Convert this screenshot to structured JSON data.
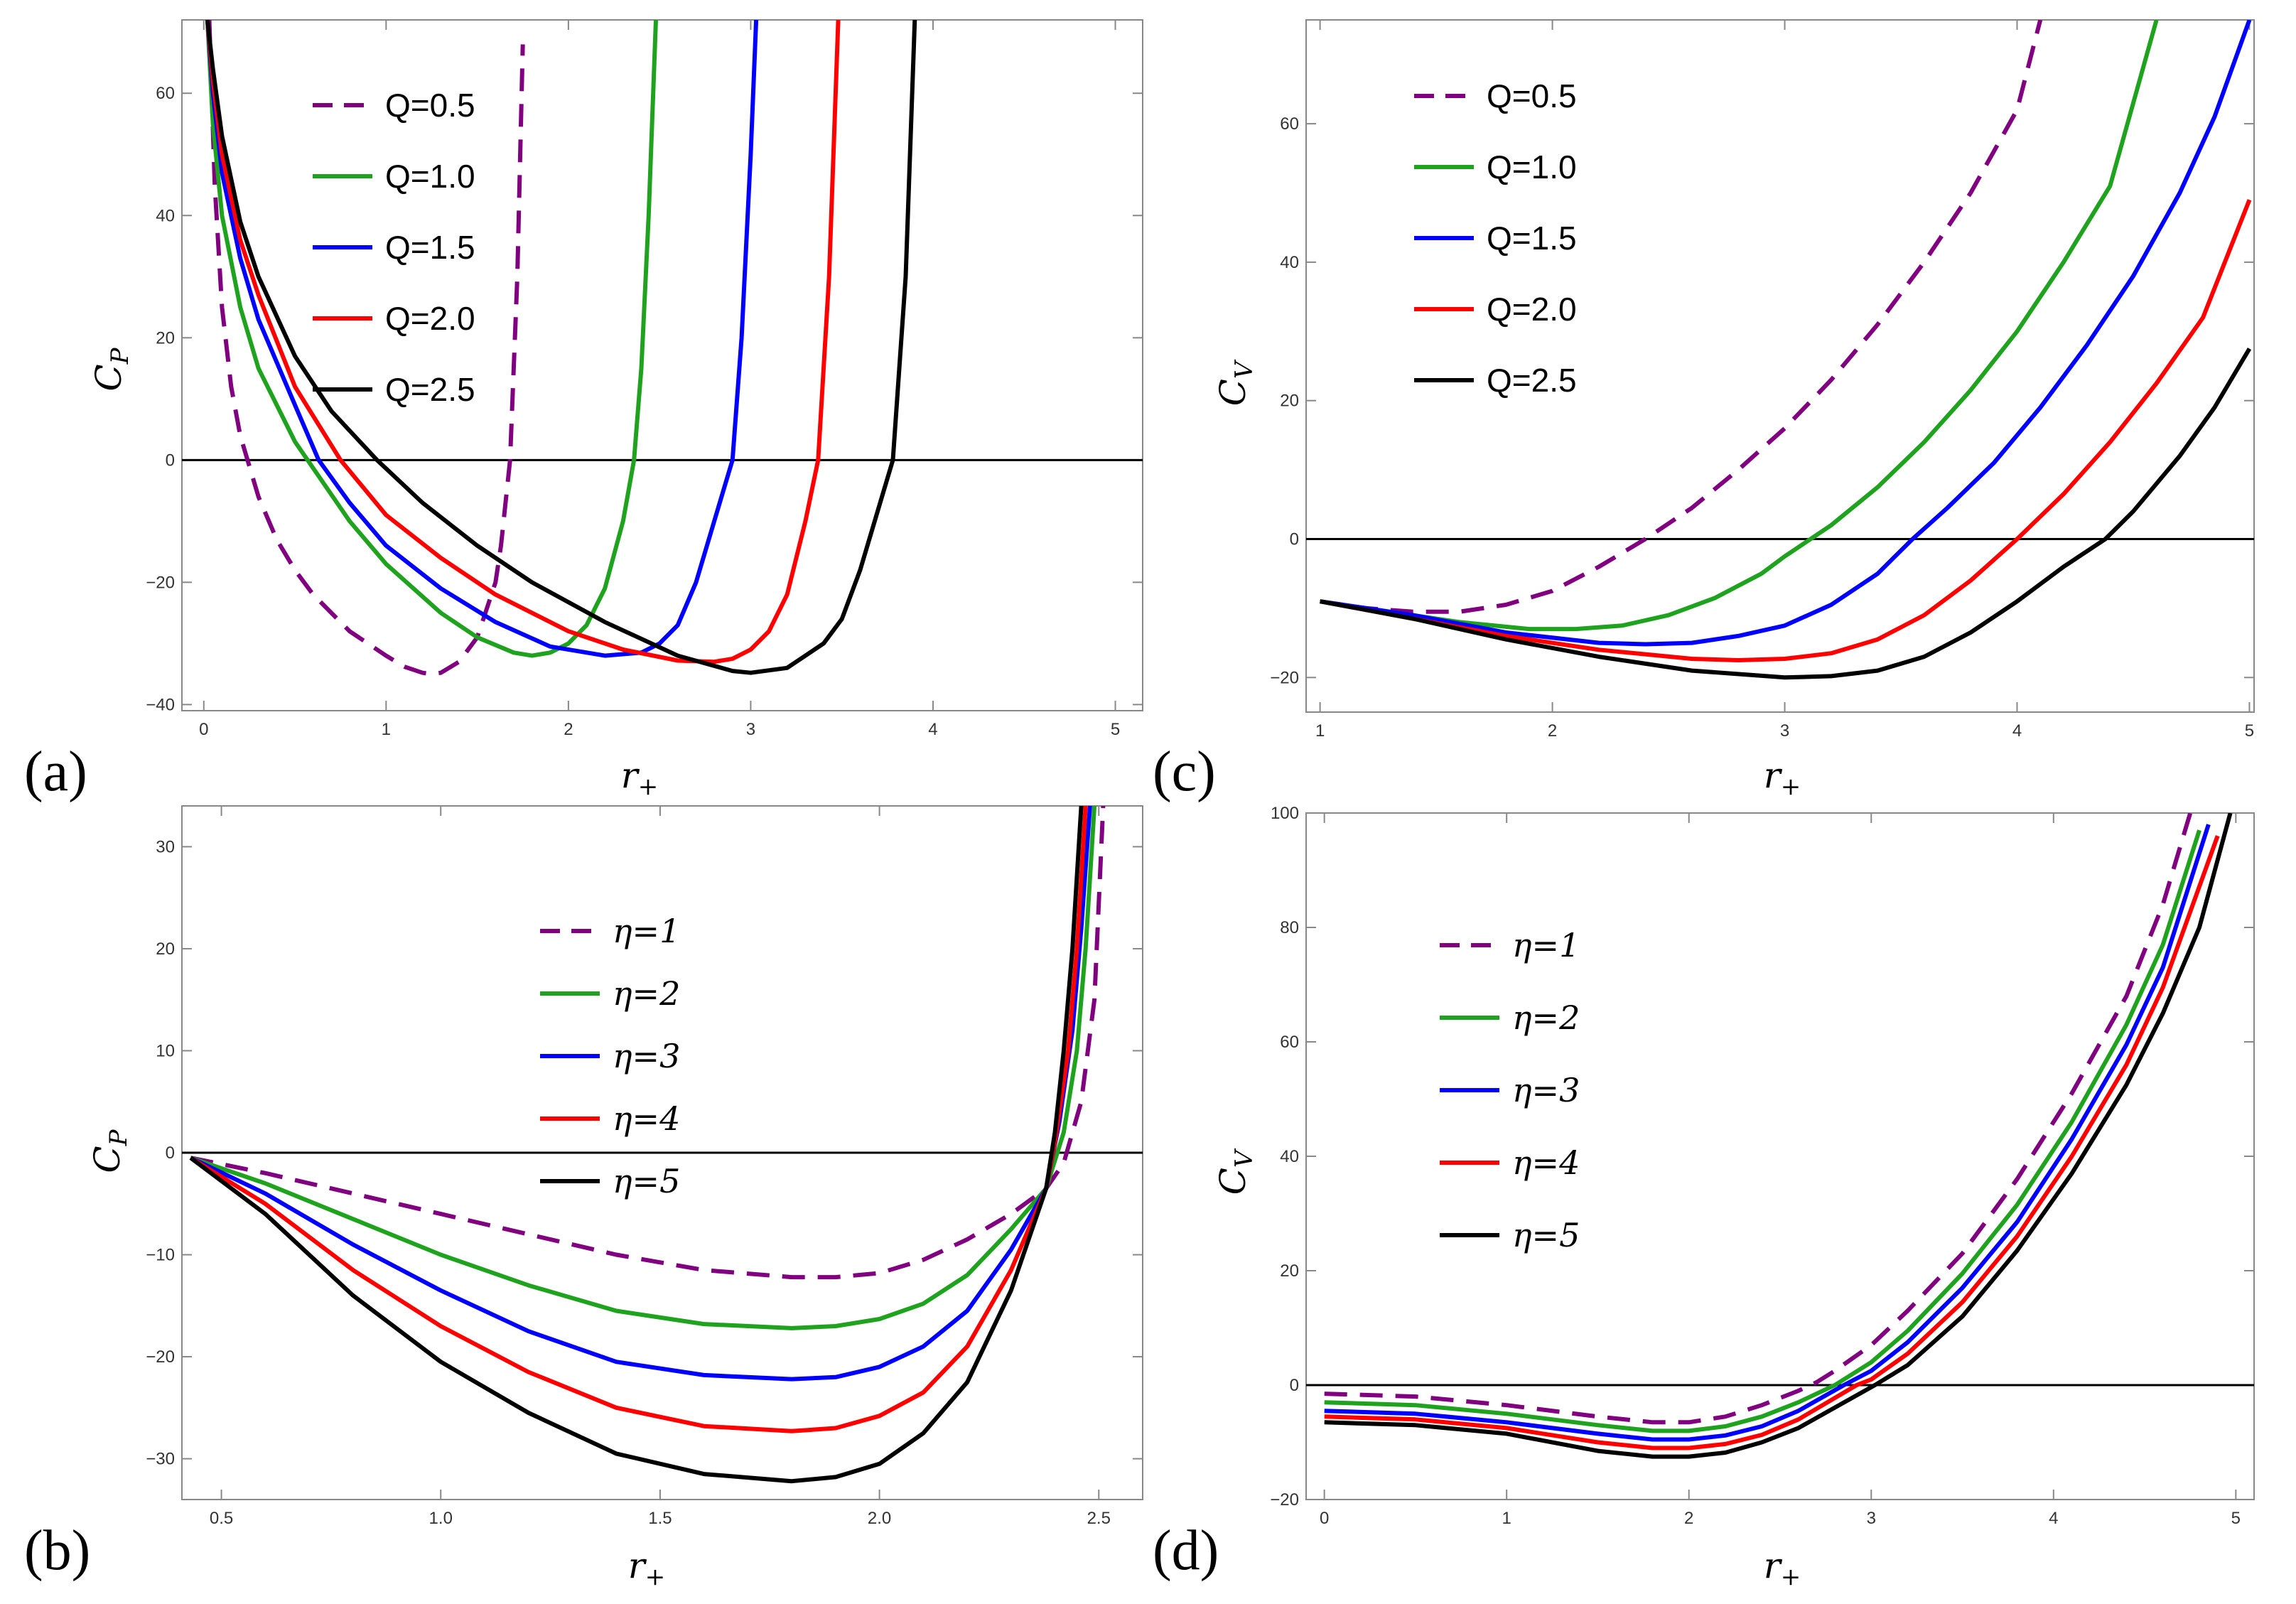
{
  "colors": {
    "purple": "#800080",
    "green": "#1fa31f",
    "blue": "#0000ff",
    "red": "#ff0000",
    "black": "#000000"
  },
  "chart_data": [
    {
      "id": "a",
      "panel_label": "(a)",
      "type": "line",
      "xlabel": "r",
      "xlabel_sub": "+",
      "ylabel": "C",
      "ylabel_sub": "P",
      "xlim": [
        -0.12,
        5.15
      ],
      "ylim": [
        -41,
        72
      ],
      "xticks": [
        0,
        1,
        2,
        3,
        4,
        5
      ],
      "xtick_labels": [
        "0",
        "1",
        "2",
        "3",
        "4",
        "5"
      ],
      "yticks": [
        -40,
        -20,
        0,
        20,
        40,
        60
      ],
      "ytick_labels": [
        "−40",
        "−20",
        "0",
        "20",
        "40",
        "60"
      ],
      "legend": {
        "position": "top-left"
      },
      "series": [
        {
          "name": "Q=0.5",
          "color": "#800080",
          "dashed": true,
          "x": [
            0.03,
            0.06,
            0.1,
            0.15,
            0.2,
            0.3,
            0.4,
            0.5,
            0.6,
            0.8,
            1.0,
            1.1,
            1.2,
            1.25,
            1.3,
            1.4,
            1.5,
            1.6,
            1.63,
            1.68,
            1.72,
            1.75
          ],
          "y": [
            72,
            45,
            25,
            12,
            4,
            -6,
            -13,
            -18,
            -22,
            -28,
            -32,
            -33.8,
            -34.8,
            -35,
            -34.8,
            -33,
            -29,
            -20,
            -14,
            0,
            30,
            68
          ]
        },
        {
          "name": "Q=1.0",
          "color": "#1fa31f",
          "dashed": false,
          "x": [
            0.02,
            0.05,
            0.1,
            0.2,
            0.3,
            0.5,
            0.8,
            1.0,
            1.3,
            1.5,
            1.7,
            1.8,
            1.9,
            2.0,
            2.1,
            2.2,
            2.3,
            2.36,
            2.4,
            2.44,
            2.48
          ],
          "y": [
            72,
            55,
            40,
            25,
            15,
            3,
            -10,
            -17,
            -25,
            -29,
            -31.5,
            -32,
            -31.5,
            -30,
            -27,
            -21,
            -10,
            0,
            15,
            40,
            72
          ]
        },
        {
          "name": "Q=1.5",
          "color": "#0000ff",
          "dashed": false,
          "x": [
            0.02,
            0.05,
            0.1,
            0.2,
            0.3,
            0.5,
            0.63,
            0.8,
            1.0,
            1.3,
            1.6,
            1.9,
            2.2,
            2.4,
            2.5,
            2.6,
            2.7,
            2.8,
            2.9,
            2.95,
            3.0,
            3.03
          ],
          "y": [
            72,
            60,
            47,
            33,
            23,
            9,
            0,
            -7,
            -14,
            -21,
            -26.5,
            -30.5,
            -32,
            -31.5,
            -30,
            -27,
            -20,
            -10,
            0,
            20,
            50,
            72
          ]
        },
        {
          "name": "Q=2.0",
          "color": "#ff0000",
          "dashed": false,
          "x": [
            0.02,
            0.05,
            0.1,
            0.2,
            0.3,
            0.5,
            0.75,
            1.0,
            1.3,
            1.6,
            2.0,
            2.3,
            2.6,
            2.8,
            2.9,
            3.0,
            3.1,
            3.2,
            3.3,
            3.37,
            3.43,
            3.48
          ],
          "y": [
            72,
            62,
            50,
            36,
            27,
            12,
            0,
            -9,
            -16,
            -22,
            -28,
            -31,
            -32.8,
            -33,
            -32.5,
            -31,
            -28,
            -22,
            -10,
            0,
            30,
            72
          ]
        },
        {
          "name": "Q=2.5",
          "color": "#000000",
          "dashed": false,
          "x": [
            0.02,
            0.05,
            0.1,
            0.2,
            0.3,
            0.5,
            0.7,
            0.95,
            1.2,
            1.5,
            1.8,
            2.2,
            2.6,
            2.9,
            3.0,
            3.2,
            3.4,
            3.5,
            3.6,
            3.7,
            3.78,
            3.85,
            3.9
          ],
          "y": [
            72,
            64,
            53,
            39,
            30,
            17,
            8,
            0,
            -7,
            -14,
            -20,
            -26.5,
            -32,
            -34.5,
            -34.8,
            -34,
            -30,
            -26,
            -18,
            -8,
            0,
            30,
            72
          ]
        }
      ]
    },
    {
      "id": "c",
      "panel_label": "(c)",
      "type": "line",
      "xlabel": "r",
      "xlabel_sub": "+",
      "ylabel": "C",
      "ylabel_sub": "V",
      "xlim": [
        0.94,
        5.02
      ],
      "ylim": [
        -25,
        75
      ],
      "xticks": [
        1,
        2,
        3,
        4,
        5
      ],
      "xtick_labels": [
        "1",
        "2",
        "3",
        "4",
        "5"
      ],
      "yticks": [
        -20,
        0,
        20,
        40,
        60
      ],
      "ytick_labels": [
        "−20",
        "0",
        "20",
        "40",
        "60"
      ],
      "legend": {
        "position": "top-left"
      },
      "series": [
        {
          "name": "Q=0.5",
          "color": "#800080",
          "dashed": true,
          "x": [
            1.0,
            1.2,
            1.4,
            1.6,
            1.8,
            2.0,
            2.2,
            2.4,
            2.6,
            2.8,
            3.0,
            3.2,
            3.4,
            3.6,
            3.8,
            4.0,
            4.1
          ],
          "y": [
            -9,
            -10,
            -10.5,
            -10.5,
            -9.5,
            -7.5,
            -4,
            0,
            4.5,
            10,
            16,
            23,
            31,
            40,
            50,
            62,
            75
          ]
        },
        {
          "name": "Q=1.0",
          "color": "#1fa31f",
          "dashed": false,
          "x": [
            1.0,
            1.3,
            1.6,
            1.9,
            2.1,
            2.3,
            2.5,
            2.7,
            2.9,
            3.0,
            3.2,
            3.4,
            3.6,
            3.8,
            4.0,
            4.2,
            4.4,
            4.6
          ],
          "y": [
            -9,
            -10.5,
            -12,
            -13,
            -13,
            -12.5,
            -11,
            -8.5,
            -5,
            -2.5,
            2,
            7.5,
            14,
            21.5,
            30,
            40,
            51,
            75
          ]
        },
        {
          "name": "Q=1.5",
          "color": "#0000ff",
          "dashed": false,
          "x": [
            1.0,
            1.4,
            1.8,
            2.2,
            2.4,
            2.6,
            2.8,
            3.0,
            3.2,
            3.4,
            3.55,
            3.7,
            3.9,
            4.1,
            4.3,
            4.5,
            4.7,
            4.85,
            5.0
          ],
          "y": [
            -9,
            -11,
            -13.5,
            -15,
            -15.2,
            -15,
            -14,
            -12.5,
            -9.5,
            -5,
            0,
            4.5,
            11,
            19,
            28,
            38,
            50,
            61,
            75
          ]
        },
        {
          "name": "Q=2.0",
          "color": "#ff0000",
          "dashed": false,
          "x": [
            1.0,
            1.4,
            1.8,
            2.2,
            2.6,
            2.8,
            3.0,
            3.2,
            3.4,
            3.6,
            3.8,
            4.0,
            4.2,
            4.4,
            4.6,
            4.8,
            5.0
          ],
          "y": [
            -9,
            -11.5,
            -14,
            -16,
            -17.3,
            -17.5,
            -17.3,
            -16.5,
            -14.5,
            -11,
            -6,
            0,
            6.5,
            14,
            22.5,
            32,
            49
          ]
        },
        {
          "name": "Q=2.5",
          "color": "#000000",
          "dashed": false,
          "x": [
            1.0,
            1.4,
            1.8,
            2.2,
            2.6,
            3.0,
            3.2,
            3.4,
            3.6,
            3.8,
            4.0,
            4.2,
            4.38,
            4.5,
            4.7,
            4.85,
            5.0
          ],
          "y": [
            -9,
            -11.5,
            -14.5,
            -17,
            -19,
            -20,
            -19.8,
            -19,
            -17,
            -13.5,
            -9,
            -4,
            0,
            4,
            12,
            19,
            27.5
          ]
        }
      ]
    },
    {
      "id": "b",
      "panel_label": "(b)",
      "type": "line",
      "xlabel": "r",
      "xlabel_sub": "+",
      "ylabel": "C",
      "ylabel_sub": "P",
      "xlim": [
        0.41,
        2.6
      ],
      "ylim": [
        -34,
        34
      ],
      "xticks": [
        0.5,
        1.0,
        1.5,
        2.0,
        2.5
      ],
      "xtick_labels": [
        "0.5",
        "1.0",
        "1.5",
        "2.0",
        "2.5"
      ],
      "yticks": [
        -30,
        -20,
        -10,
        0,
        10,
        20,
        30
      ],
      "ytick_labels": [
        "−30",
        "−20",
        "−10",
        "0",
        "10",
        "20",
        "30"
      ],
      "legend": {
        "position": "top-center"
      },
      "series": [
        {
          "name": "η=1",
          "color": "#800080",
          "dashed": true,
          "x": [
            0.43,
            0.6,
            0.8,
            1.0,
            1.2,
            1.4,
            1.6,
            1.8,
            1.9,
            2.0,
            2.1,
            2.2,
            2.3,
            2.38,
            2.42,
            2.46,
            2.49,
            2.51
          ],
          "y": [
            -0.5,
            -2,
            -4,
            -6,
            -8,
            -10,
            -11.5,
            -12.2,
            -12.2,
            -11.8,
            -10.5,
            -8.5,
            -6,
            -3.5,
            -1,
            5,
            15,
            34
          ]
        },
        {
          "name": "η=2",
          "color": "#1fa31f",
          "dashed": false,
          "x": [
            0.43,
            0.6,
            0.8,
            1.0,
            1.2,
            1.4,
            1.6,
            1.8,
            1.9,
            2.0,
            2.1,
            2.2,
            2.3,
            2.38,
            2.42,
            2.45,
            2.47,
            2.49
          ],
          "y": [
            -0.5,
            -3,
            -6.5,
            -10,
            -13,
            -15.5,
            -16.8,
            -17.2,
            -17,
            -16.3,
            -14.8,
            -12,
            -7.5,
            -3.5,
            2,
            10,
            20,
            34
          ]
        },
        {
          "name": "η=3",
          "color": "#0000ff",
          "dashed": false,
          "x": [
            0.43,
            0.6,
            0.8,
            1.0,
            1.2,
            1.4,
            1.6,
            1.8,
            1.9,
            2.0,
            2.1,
            2.2,
            2.3,
            2.38,
            2.41,
            2.44,
            2.46,
            2.48
          ],
          "y": [
            -0.5,
            -4,
            -9,
            -13.5,
            -17.5,
            -20.5,
            -21.8,
            -22.2,
            -22,
            -21,
            -19,
            -15.5,
            -9.5,
            -3.5,
            3,
            12,
            22,
            34
          ]
        },
        {
          "name": "η=4",
          "color": "#ff0000",
          "dashed": false,
          "x": [
            0.43,
            0.6,
            0.8,
            1.0,
            1.2,
            1.4,
            1.6,
            1.8,
            1.9,
            2.0,
            2.1,
            2.2,
            2.3,
            2.38,
            2.4,
            2.43,
            2.45,
            2.47
          ],
          "y": [
            -0.5,
            -5,
            -11.5,
            -17,
            -21.5,
            -25,
            -26.8,
            -27.3,
            -27,
            -25.8,
            -23.5,
            -19,
            -11.5,
            -3.5,
            1,
            10,
            20,
            34
          ]
        },
        {
          "name": "η=5",
          "color": "#000000",
          "dashed": false,
          "x": [
            0.43,
            0.6,
            0.8,
            1.0,
            1.2,
            1.4,
            1.6,
            1.8,
            1.9,
            2.0,
            2.1,
            2.2,
            2.3,
            2.38,
            2.4,
            2.42,
            2.44,
            2.46
          ],
          "y": [
            -0.5,
            -6,
            -14,
            -20.5,
            -25.5,
            -29.5,
            -31.5,
            -32.2,
            -31.8,
            -30.5,
            -27.5,
            -22.5,
            -13.5,
            -3.5,
            2,
            10,
            20,
            34
          ]
        }
      ]
    },
    {
      "id": "d",
      "panel_label": "(d)",
      "type": "line",
      "xlabel": "r",
      "xlabel_sub": "+",
      "ylabel": "C",
      "ylabel_sub": "V",
      "xlim": [
        -0.1,
        5.1
      ],
      "ylim": [
        -20,
        100
      ],
      "xticks": [
        0,
        1,
        2,
        3,
        4,
        5
      ],
      "xtick_labels": [
        "0",
        "1",
        "2",
        "3",
        "4",
        "5"
      ],
      "yticks": [
        -20,
        0,
        20,
        40,
        60,
        80,
        100
      ],
      "ytick_labels": [
        "−20",
        "0",
        "20",
        "40",
        "60",
        "80",
        "100"
      ],
      "legend": {
        "position": "top-left"
      },
      "series": [
        {
          "name": "η=1",
          "color": "#800080",
          "dashed": true,
          "x": [
            0,
            0.5,
            1.0,
            1.5,
            1.8,
            2.0,
            2.2,
            2.4,
            2.6,
            2.7,
            2.8,
            3.0,
            3.2,
            3.5,
            3.8,
            4.1,
            4.4,
            4.6,
            4.75
          ],
          "y": [
            -1.5,
            -2,
            -3.5,
            -5.5,
            -6.5,
            -6.5,
            -5.5,
            -3.5,
            -1,
            0.5,
            2.5,
            7,
            13,
            23,
            36,
            51,
            68,
            84,
            100
          ]
        },
        {
          "name": "η=2",
          "color": "#1fa31f",
          "dashed": false,
          "x": [
            0,
            0.5,
            1.0,
            1.5,
            1.8,
            2.0,
            2.2,
            2.4,
            2.6,
            2.8,
            3.0,
            3.2,
            3.5,
            3.8,
            4.1,
            4.4,
            4.6,
            4.8
          ],
          "y": [
            -3,
            -3.5,
            -5,
            -7,
            -8,
            -8,
            -7.2,
            -5.5,
            -3,
            0,
            4,
            9.5,
            19.5,
            31.5,
            46,
            63,
            77,
            97
          ]
        },
        {
          "name": "η=3",
          "color": "#0000ff",
          "dashed": false,
          "x": [
            0,
            0.5,
            1.0,
            1.5,
            1.8,
            2.0,
            2.2,
            2.4,
            2.6,
            2.85,
            3.0,
            3.2,
            3.5,
            3.8,
            4.1,
            4.4,
            4.6,
            4.85
          ],
          "y": [
            -4.5,
            -5,
            -6.5,
            -8.5,
            -9.5,
            -9.5,
            -8.8,
            -7.2,
            -4.5,
            0,
            2.5,
            7.5,
            17,
            28.5,
            43,
            59.5,
            73,
            98
          ]
        },
        {
          "name": "η=4",
          "color": "#ff0000",
          "dashed": false,
          "x": [
            0,
            0.5,
            1.0,
            1.5,
            1.8,
            2.0,
            2.2,
            2.4,
            2.6,
            2.92,
            3.0,
            3.2,
            3.5,
            3.8,
            4.1,
            4.4,
            4.6,
            4.9
          ],
          "y": [
            -5.5,
            -6,
            -7.5,
            -10,
            -11,
            -11,
            -10.3,
            -8.7,
            -6,
            0,
            1,
            5.5,
            14.5,
            26,
            40,
            56,
            69.5,
            96
          ]
        },
        {
          "name": "η=5",
          "color": "#000000",
          "dashed": false,
          "x": [
            0,
            0.5,
            1.0,
            1.5,
            1.8,
            2.0,
            2.2,
            2.4,
            2.6,
            3.02,
            3.2,
            3.5,
            3.8,
            4.1,
            4.4,
            4.6,
            4.8,
            4.97
          ],
          "y": [
            -6.5,
            -7,
            -8.5,
            -11.5,
            -12.5,
            -12.5,
            -11.8,
            -10,
            -7.5,
            0,
            3.5,
            12,
            23.5,
            37,
            52.5,
            65,
            80,
            100
          ]
        }
      ]
    }
  ]
}
